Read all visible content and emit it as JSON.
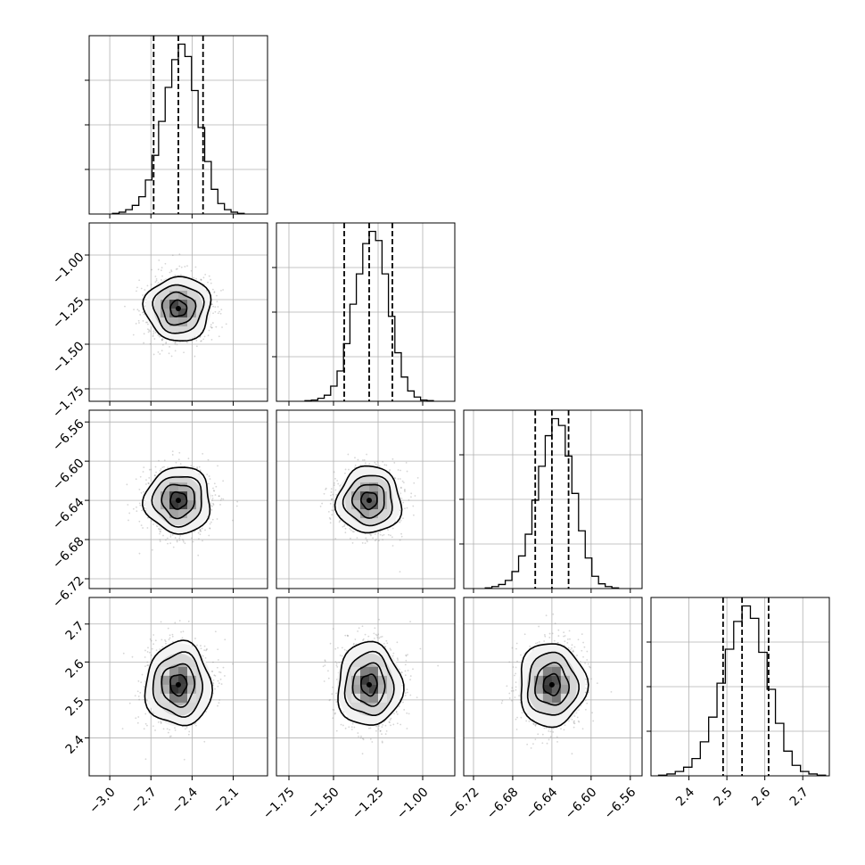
{
  "colors": {
    "background": "#ffffff",
    "line": "#000000",
    "grid": "#b0b0b0",
    "scatter": "#8a8a8a"
  },
  "chart_data": {
    "type": "corner",
    "title": "",
    "grid": true,
    "parameters": [
      {
        "key": "p0",
        "label": "",
        "range": [
          -3.15,
          -1.85
        ],
        "ticks": [
          -3.0,
          -2.7,
          -2.4,
          -2.1
        ],
        "tick_labels": [
          "−3.0",
          "−2.7",
          "−2.4",
          "−2.1"
        ],
        "mean": -2.5,
        "sigma": 0.12,
        "quantiles": [
          -2.68,
          -2.5,
          -2.32
        ],
        "hist_heights": [
          1,
          3,
          7,
          14,
          28,
          55,
          95,
          150,
          205,
          250,
          275,
          255,
          200,
          140,
          85,
          40,
          17,
          7,
          3,
          1
        ]
      },
      {
        "key": "p1",
        "label": "",
        "range": [
          -1.82,
          -0.82
        ],
        "ticks": [
          -1.75,
          -1.5,
          -1.25,
          -1.0
        ],
        "tick_labels": [
          "−1.75",
          "−1.50",
          "−1.25",
          "−1.00"
        ],
        "mean": -1.3,
        "sigma": 0.09,
        "quantiles": [
          -1.44,
          -1.3,
          -1.17
        ],
        "hist_heights": [
          1,
          2,
          5,
          10,
          25,
          50,
          95,
          160,
          210,
          260,
          280,
          265,
          210,
          140,
          80,
          40,
          17,
          7,
          2,
          1
        ]
      },
      {
        "key": "p2",
        "label": "",
        "range": [
          -6.73,
          -6.548
        ],
        "ticks": [
          -6.72,
          -6.68,
          -6.64,
          -6.6,
          -6.56
        ],
        "tick_labels": [
          "−6.72",
          "−6.68",
          "−6.64",
          "−6.60",
          "−6.56"
        ],
        "mean": -6.64,
        "sigma": 0.017,
        "quantiles": [
          -6.657,
          -6.64,
          -6.623
        ],
        "hist_heights": [
          1,
          3,
          6,
          12,
          25,
          48,
          80,
          130,
          180,
          225,
          250,
          240,
          195,
          140,
          85,
          45,
          18,
          7,
          3,
          1
        ]
      },
      {
        "key": "p3",
        "label": "",
        "range": [
          2.3,
          2.77
        ],
        "ticks": [
          2.4,
          2.5,
          2.6,
          2.7
        ],
        "tick_labels": [
          "2.4",
          "2.5",
          "2.6",
          "2.7"
        ],
        "mean": 2.54,
        "sigma": 0.055,
        "quantiles": [
          2.49,
          2.54,
          2.61
        ],
        "hist_heights": [
          1,
          3,
          7,
          14,
          28,
          55,
          95,
          150,
          205,
          250,
          275,
          255,
          200,
          140,
          85,
          40,
          17,
          7,
          3,
          1
        ]
      }
    ],
    "contour_levels_sigma": [
      0.5,
      1.0,
      1.5,
      2.0
    ]
  }
}
